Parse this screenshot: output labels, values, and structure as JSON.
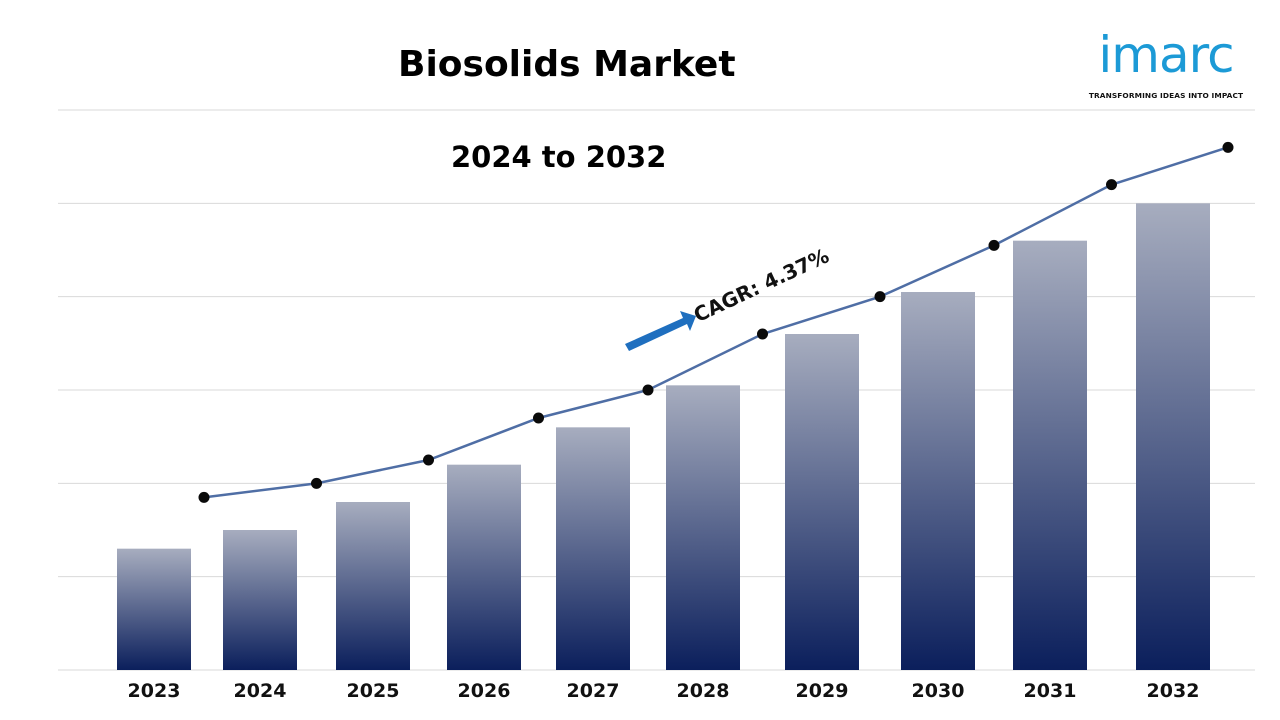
{
  "header": {
    "title": "Biosolids Market",
    "subtitle": "2024 to 2032"
  },
  "logo": {
    "wordmark": "imarc",
    "tagline": "TRANSFORMING IDEAS INTO IMPACT",
    "color": "#1c9ad6"
  },
  "annotation": {
    "cagr_label": "CAGR: 4.37%",
    "arrow_icon": "right-arrow-icon",
    "arrow_color": "#1f6fbf"
  },
  "colors": {
    "bar_top": "#a7adbf",
    "bar_bottom": "#0b1f5c",
    "line": "#4f6ea5",
    "marker": "#0a0a0a",
    "grid": "#d9d9d9"
  },
  "chart_data": {
    "type": "bar",
    "title": "Biosolids Market",
    "subtitle": "2024 to 2032",
    "categories": [
      "2023",
      "2024",
      "2025",
      "2026",
      "2027",
      "2028",
      "2029",
      "2030",
      "2031",
      "2032"
    ],
    "values": [
      26,
      30,
      36,
      44,
      52,
      61,
      72,
      81,
      92,
      100
    ],
    "trend_line": [
      37,
      40,
      45,
      54,
      60,
      72,
      80,
      91,
      104,
      112
    ],
    "ylim": [
      0,
      120
    ],
    "yaxis_labels": false,
    "grid": true,
    "xlabel": "",
    "ylabel": ""
  }
}
